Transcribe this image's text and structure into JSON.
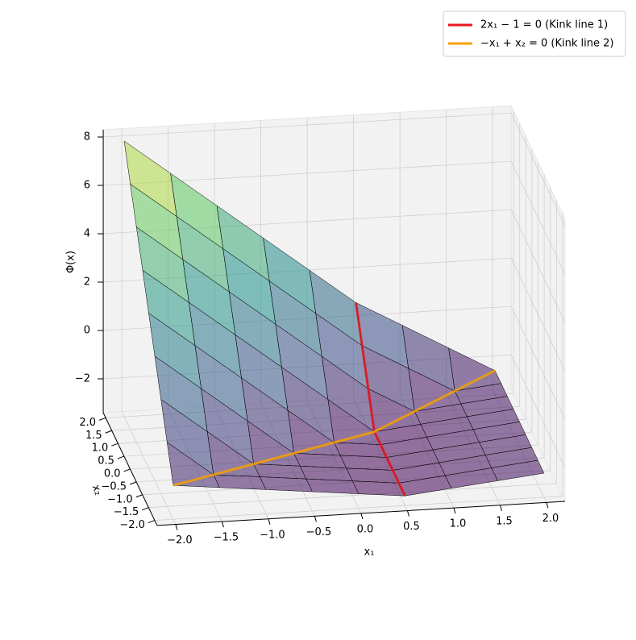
{
  "chart_data": {
    "type": "surface3d",
    "xlabel": "x₁",
    "ylabel": "x₂",
    "zlabel": "Φ(x)",
    "xlim": [
      -2.2,
      2.2
    ],
    "ylim": [
      -2.2,
      2.2
    ],
    "zlim": [
      -3.4,
      8.3
    ],
    "xticks": [
      {
        "value": -2,
        "label": "−2.0"
      },
      {
        "value": -1.5,
        "label": "−1.5"
      },
      {
        "value": -1,
        "label": "−1.0"
      },
      {
        "value": -0.5,
        "label": "−0.5"
      },
      {
        "value": 0,
        "label": "0.0"
      },
      {
        "value": 0.5,
        "label": "0.5"
      },
      {
        "value": 1,
        "label": "1.0"
      },
      {
        "value": 1.5,
        "label": "1.5"
      },
      {
        "value": 2,
        "label": "2.0"
      }
    ],
    "yticks": [
      {
        "value": -2,
        "label": "−2.0"
      },
      {
        "value": -1.5,
        "label": "−1.5"
      },
      {
        "value": -1,
        "label": "−1.0"
      },
      {
        "value": -0.5,
        "label": "−0.5"
      },
      {
        "value": 0,
        "label": "0.0"
      },
      {
        "value": 0.5,
        "label": "0.5"
      },
      {
        "value": 1,
        "label": "1.0"
      },
      {
        "value": 1.5,
        "label": "1.5"
      },
      {
        "value": 2,
        "label": "2.0"
      }
    ],
    "zticks": [
      {
        "value": -2,
        "label": "−2"
      },
      0,
      2,
      4,
      6,
      8
    ],
    "grid": true,
    "surface": {
      "x": [
        -2,
        -1.5,
        -1,
        -0.5,
        0,
        0.5,
        1,
        1.5,
        2
      ],
      "y": [
        -2,
        -1.5,
        -1,
        -0.5,
        0,
        0.5,
        1,
        1.5,
        2
      ],
      "z": [
        [
          -2,
          -2.2,
          -2.4,
          -2.6,
          -2.8,
          -3,
          -2.8,
          -2.6,
          -2.4
        ],
        [
          -0.75,
          -2.2,
          -2.4,
          -2.6,
          -2.8,
          -3,
          -2.8,
          -2.6,
          -2.4
        ],
        [
          0.5,
          -0.95,
          -2.4,
          -2.6,
          -2.8,
          -3,
          -2.8,
          -2.6,
          -2.4
        ],
        [
          1.75,
          0.3,
          -1.15,
          -2.6,
          -2.8,
          -3,
          -2.8,
          -2.6,
          -2.4
        ],
        [
          3,
          1.55,
          0.1,
          -1.35,
          -2.8,
          -3,
          -2.8,
          -2.6,
          -2.4
        ],
        [
          4.25,
          2.8,
          1.35,
          -0.1,
          -1.55,
          -3,
          -2.8,
          -2.6,
          -2.4
        ],
        [
          5.5,
          4.05,
          2.6,
          1.15,
          -0.3,
          -1.75,
          -2.8,
          -2.6,
          -2.4
        ],
        [
          6.75,
          5.3,
          3.85,
          2.4,
          0.95,
          -0.5,
          -1.55,
          -2.6,
          -2.4
        ],
        [
          8,
          6.55,
          5.1,
          3.65,
          2.2,
          0.75,
          -0.3,
          -1.35,
          -2.4
        ]
      ]
    },
    "series": [
      {
        "name": "2x₁ − 1 = 0 (Kink line 1)",
        "color": "#e8141c",
        "x": [
          0.5,
          0.5,
          0.5
        ],
        "y": [
          -2,
          0.5,
          2
        ],
        "z": [
          -3,
          -3,
          0.75
        ]
      },
      {
        "name": "−x₁ + x₂ = 0 (Kink line 2)",
        "color": "#f5a000",
        "x": [
          -2,
          0.5,
          2
        ],
        "y": [
          -2,
          0.5,
          2
        ],
        "z": [
          -2,
          -3,
          -2.4
        ]
      }
    ],
    "legend": "upper right"
  }
}
